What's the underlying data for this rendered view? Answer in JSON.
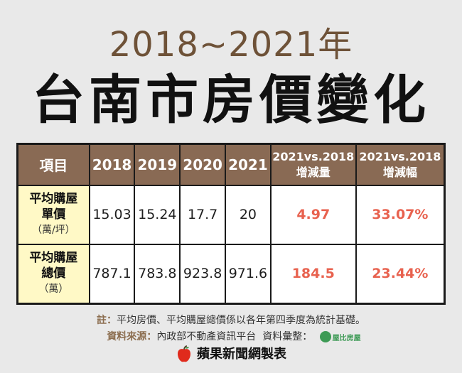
{
  "header": {
    "subtitle": "2018~2021年",
    "title": "台南市房價變化"
  },
  "table": {
    "headers": [
      "項目",
      "2018",
      "2019",
      "2020",
      "2021"
    ],
    "compare_headers": [
      {
        "line1": "2021vs.2018",
        "line2": "增減量"
      },
      {
        "line1": "2021vs.2018",
        "line2": "增減幅"
      }
    ],
    "rows": [
      {
        "label_line1": "平均購屋",
        "label_line2": "單價",
        "unit": "（萬/坪）",
        "values": [
          "15.03",
          "15.24",
          "17.7",
          "20"
        ],
        "change": "4.97",
        "change_pct": "33.07%"
      },
      {
        "label_line1": "平均購屋",
        "label_line2": "總價",
        "unit": "（萬）",
        "values": [
          "787.1",
          "783.8",
          "923.8",
          "971.6"
        ],
        "change": "184.5",
        "change_pct": "23.44%"
      }
    ]
  },
  "note": {
    "label": "註：",
    "text": "平均房價、平均購屋總價係以各年第四季度為統計基礎。"
  },
  "source": {
    "label": "資料來源：",
    "text": "內政部不動產資訊平台",
    "collector_label": "資料彙整：",
    "collector_logo_text": "屋比房屋"
  },
  "footer": {
    "text": "蘋果新聞網製表",
    "icon": "apple-icon"
  },
  "colors": {
    "background": "#e9e9e9",
    "header_fill": "#896a54",
    "row_label_fill": "#fff9c6",
    "positive_change": "#e8624f",
    "subtitle": "#6e5238"
  }
}
